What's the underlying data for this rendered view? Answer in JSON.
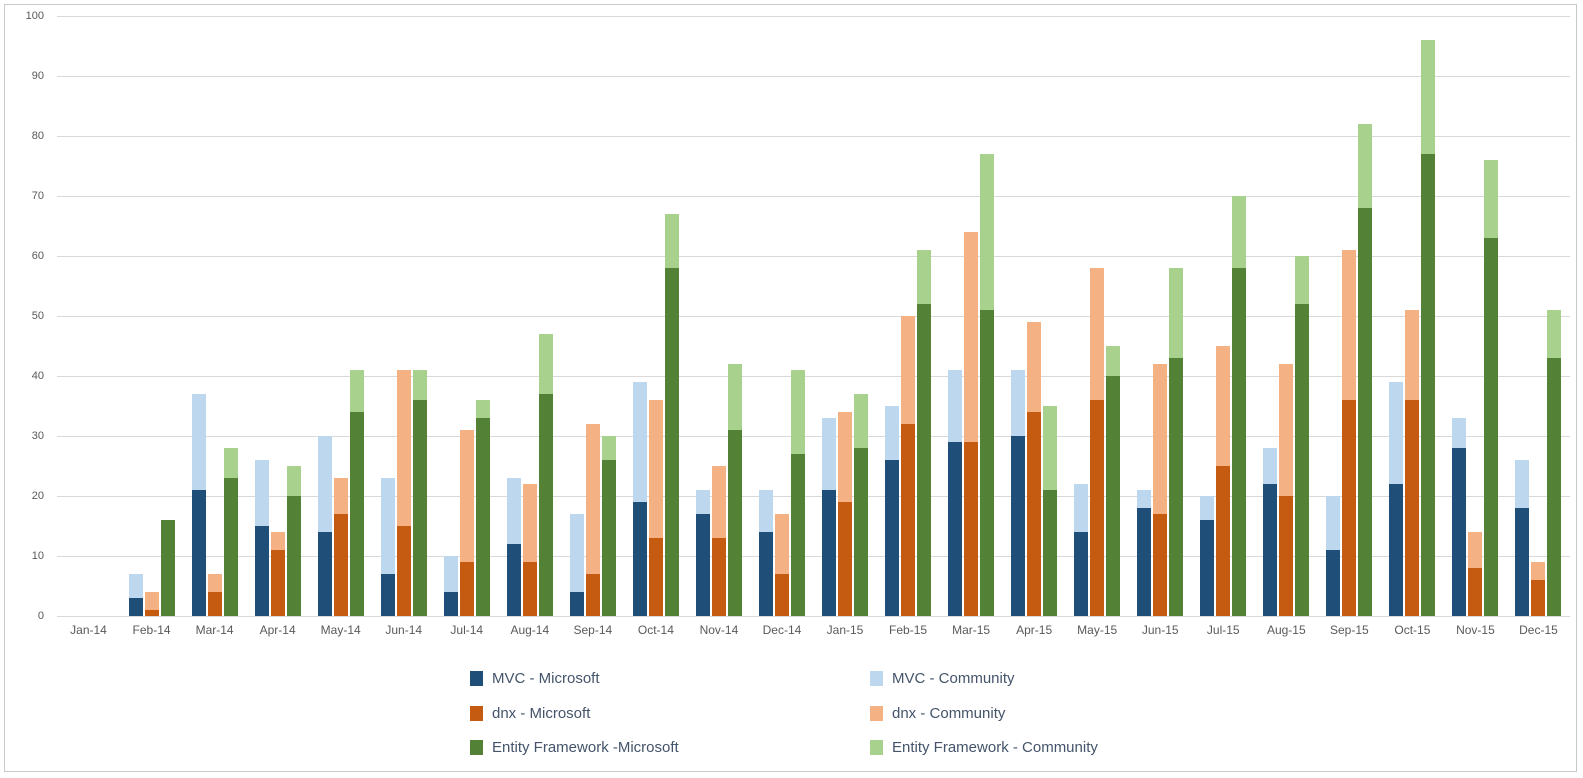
{
  "chart_data": {
    "type": "bar",
    "stacked": true,
    "title": "",
    "xlabel": "",
    "ylabel": "",
    "ylim": [
      0,
      100
    ],
    "ytick_interval": 10,
    "grid": true,
    "legend_position": "bottom",
    "grid_color": "#d9d9d9",
    "axis_text_color": "#595959",
    "legend_text_color": "#44546a",
    "categories": [
      "Jan-14",
      "Feb-14",
      "Mar-14",
      "Apr-14",
      "May-14",
      "Jun-14",
      "Jul-14",
      "Aug-14",
      "Sep-14",
      "Oct-14",
      "Nov-14",
      "Dec-14",
      "Jan-15",
      "Feb-15",
      "Mar-15",
      "Apr-15",
      "May-15",
      "Jun-15",
      "Jul-15",
      "Aug-15",
      "Sep-15",
      "Oct-15",
      "Nov-15",
      "Dec-15"
    ],
    "series": [
      {
        "name": "MVC - Microsoft",
        "group": "MVC",
        "role": "Microsoft",
        "color": "#1F4E79",
        "values": [
          0,
          3,
          21,
          15,
          14,
          7,
          4,
          12,
          4,
          19,
          17,
          14,
          21,
          26,
          29,
          30,
          14,
          18,
          16,
          22,
          11,
          22,
          28,
          18
        ]
      },
      {
        "name": "MVC - Community",
        "group": "MVC",
        "role": "Community",
        "color": "#BDD7EE",
        "values": [
          0,
          4,
          16,
          11,
          16,
          16,
          6,
          11,
          13,
          20,
          4,
          7,
          12,
          9,
          12,
          11,
          8,
          3,
          4,
          6,
          9,
          17,
          5,
          8
        ]
      },
      {
        "name": "dnx - Microsoft",
        "group": "dnx",
        "role": "Microsoft",
        "color": "#C55A11",
        "values": [
          0,
          1,
          4,
          11,
          17,
          15,
          9,
          9,
          7,
          13,
          13,
          7,
          19,
          32,
          29,
          34,
          36,
          17,
          25,
          20,
          36,
          36,
          8,
          6
        ]
      },
      {
        "name": "dnx - Community",
        "group": "dnx",
        "role": "Community",
        "color": "#F4B183",
        "values": [
          0,
          3,
          3,
          3,
          6,
          26,
          22,
          13,
          25,
          23,
          12,
          10,
          15,
          18,
          35,
          15,
          22,
          25,
          20,
          22,
          25,
          15,
          6,
          3
        ]
      },
      {
        "name": "Entity Framework -Microsoft",
        "group": "Entity Framework",
        "role": "Microsoft",
        "color": "#538135",
        "values": [
          0,
          16,
          23,
          20,
          34,
          36,
          33,
          37,
          26,
          58,
          31,
          27,
          28,
          52,
          51,
          21,
          40,
          43,
          58,
          52,
          68,
          77,
          63,
          43
        ]
      },
      {
        "name": "Entity Framework - Community",
        "group": "Entity Framework",
        "role": "Community",
        "color": "#A9D18E",
        "values": [
          0,
          0,
          5,
          5,
          7,
          5,
          3,
          10,
          4,
          9,
          11,
          14,
          9,
          9,
          26,
          14,
          5,
          15,
          12,
          8,
          14,
          19,
          13,
          8
        ]
      }
    ]
  }
}
